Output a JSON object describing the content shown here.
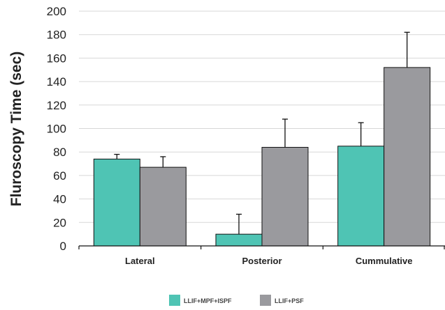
{
  "chart_data": {
    "type": "bar",
    "title": "",
    "xlabel": "",
    "ylabel": "Fluroscopy Time (sec)",
    "ylim": [
      0,
      200
    ],
    "yticks": [
      0,
      20,
      40,
      60,
      80,
      100,
      120,
      140,
      160,
      180,
      200
    ],
    "grid": true,
    "legend_position": "bottom-center",
    "categories": [
      "Lateral",
      "Posterior",
      "Cummulative"
    ],
    "series": [
      {
        "name": "LLIF+MPF+ISPF",
        "color": "#4fc4b4",
        "values": [
          74,
          10,
          85
        ],
        "error": [
          4,
          17,
          20
        ]
      },
      {
        "name": "LLIF+PSF",
        "color": "#9a9a9e",
        "values": [
          67,
          84,
          152
        ],
        "error": [
          9,
          24,
          30
        ]
      }
    ]
  }
}
